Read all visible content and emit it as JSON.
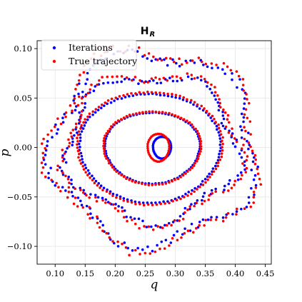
{
  "chart_data": {
    "type": "scatter",
    "title": "H",
    "title_subscript": "R",
    "xlabel": "q",
    "ylabel": "p",
    "xlim": [
      0.07,
      0.46
    ],
    "ylim": [
      -0.118,
      0.108
    ],
    "xticks": [
      "0.10",
      "0.15",
      "0.20",
      "0.25",
      "0.30",
      "0.35",
      "0.40",
      "0.45"
    ],
    "yticks": [
      "−0.10",
      "−0.05",
      "0.00",
      "0.05",
      "0.10"
    ],
    "xtick_values": [
      0.1,
      0.15,
      0.2,
      0.25,
      0.3,
      0.35,
      0.4,
      0.45
    ],
    "ytick_values": [
      -0.1,
      -0.05,
      0.0,
      0.05,
      0.1
    ],
    "grid": true,
    "legend_position": "top-left",
    "series": [
      {
        "name": "Iterations",
        "color": "#0000ff",
        "orbits": [
          {
            "center": [
              0.278,
              0.0
            ],
            "rx": 0.015,
            "ry": 0.011,
            "n": 40
          },
          {
            "center": [
              0.262,
              0.0
            ],
            "rx": 0.079,
            "ry": 0.036,
            "n": 90
          },
          {
            "center": [
              0.258,
              0.0
            ],
            "rx": 0.117,
            "ry": 0.055,
            "n": 110
          },
          {
            "center": [
              0.262,
              0.0
            ],
            "rx": 0.142,
            "ry": 0.072,
            "n": 130
          },
          {
            "center": [
              0.265,
              0.0
            ],
            "rx": 0.168,
            "ry": 0.096,
            "n": 140
          }
        ]
      },
      {
        "name": "True trajectory",
        "color": "#ff0000",
        "orbits": [
          {
            "center": [
              0.272,
              0.0
            ],
            "rx": 0.018,
            "ry": 0.014,
            "n": 40
          },
          {
            "center": [
              0.262,
              0.0
            ],
            "rx": 0.081,
            "ry": 0.037,
            "n": 90
          },
          {
            "center": [
              0.258,
              0.0
            ],
            "rx": 0.121,
            "ry": 0.057,
            "n": 110
          },
          {
            "center": [
              0.262,
              0.0
            ],
            "rx": 0.147,
            "ry": 0.075,
            "n": 130
          },
          {
            "center": [
              0.265,
              0.0
            ],
            "rx": 0.172,
            "ry": 0.099,
            "n": 140
          }
        ]
      }
    ]
  }
}
